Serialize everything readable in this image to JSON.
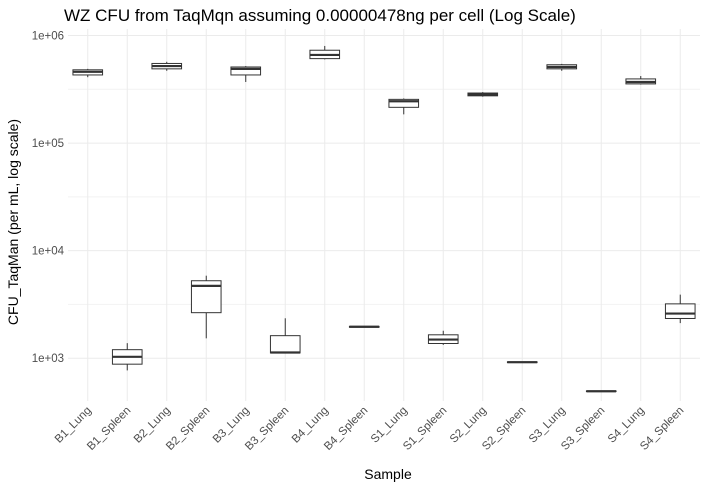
{
  "chart_data": {
    "type": "box",
    "title": "WZ CFU from TaqMqn assuming 0.00000478ng per cell (Log Scale)",
    "xlabel": "Sample",
    "ylabel": "CFU_TaqMan (per mL, log scale)",
    "y_scale": "log10",
    "ylim": [
      400,
      1150000
    ],
    "y_ticks": [
      1000,
      10000,
      100000,
      1000000
    ],
    "y_tick_labels": [
      "1e+03",
      "1e+04",
      "1e+05",
      "1e+06"
    ],
    "grid": true,
    "categories": [
      "B1_Lung",
      "B1_Spleen",
      "B2_Lung",
      "B2_Spleen",
      "B3_Lung",
      "B3_Spleen",
      "B4_Lung",
      "B4_Spleen",
      "S1_Lung",
      "S1_Spleen",
      "S2_Lung",
      "S2_Spleen",
      "S3_Lung",
      "S3_Spleen",
      "S4_Lung",
      "S4_Spleen"
    ],
    "boxes": [
      {
        "min": 410000,
        "q1": 430000,
        "median": 460000,
        "q3": 480000,
        "max": 490000
      },
      {
        "min": 770.0,
        "q1": 880,
        "median": 1030,
        "q3": 1200,
        "max": 1380
      },
      {
        "min": 470000,
        "q1": 490000,
        "median": 520000,
        "q3": 550000,
        "max": 570000
      },
      {
        "min": 1530,
        "q1": 2650,
        "median": 4700,
        "q3": 5250,
        "max": 5850
      },
      {
        "min": 370000,
        "q1": 430000,
        "median": 490000,
        "q3": 510000,
        "max": 520000
      },
      {
        "min": 1120,
        "q1": 1120,
        "median": 1130,
        "q3": 1620,
        "max": 2350
      },
      {
        "min": 600000,
        "q1": 610000,
        "median": 660000,
        "q3": 730000,
        "max": 800000
      },
      {
        "min": 1930,
        "q1": 1940,
        "median": 1960,
        "q3": 1975,
        "max": 1985
      },
      {
        "min": 185000,
        "q1": 215000,
        "median": 245000,
        "q3": 255000,
        "max": 260000
      },
      {
        "min": 1330,
        "q1": 1370,
        "median": 1490,
        "q3": 1650,
        "max": 1800
      },
      {
        "min": 270000,
        "q1": 275000,
        "median": 283000,
        "q3": 292000,
        "max": 298000
      },
      {
        "min": 905,
        "q1": 910,
        "median": 918,
        "q3": 925,
        "max": 930
      },
      {
        "min": 470000,
        "q1": 490000,
        "median": 510000,
        "q3": 535000,
        "max": 545000
      },
      {
        "min": 488,
        "q1": 490,
        "median": 493,
        "q3": 496,
        "max": 498
      },
      {
        "min": 350000,
        "q1": 355000,
        "median": 370000,
        "q3": 395000,
        "max": 420000
      },
      {
        "min": 2120,
        "q1": 2340,
        "median": 2600,
        "q3": 3200,
        "max": 3900
      }
    ]
  }
}
